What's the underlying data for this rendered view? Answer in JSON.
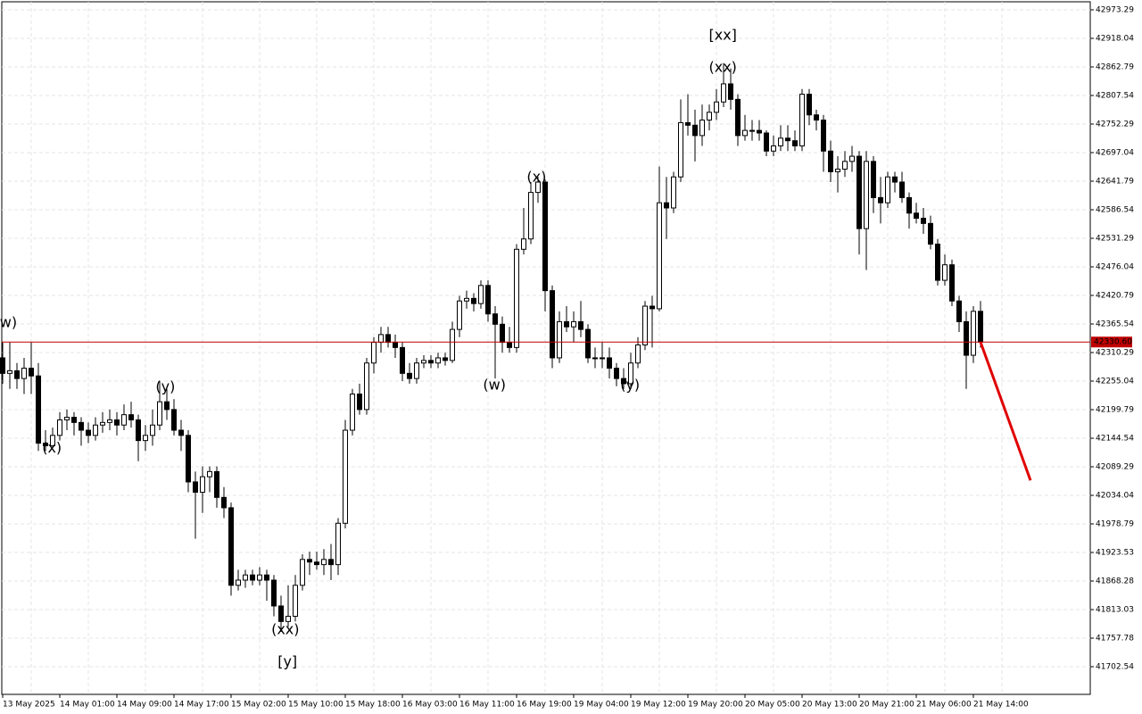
{
  "chart_data": {
    "type": "candlestick",
    "categories": [
      "13 May 2025",
      null,
      null,
      null,
      null,
      null,
      null,
      null,
      "14 May 01:00",
      null,
      null,
      null,
      null,
      null,
      null,
      null,
      "14 May 09:00",
      null,
      null,
      null,
      null,
      null,
      null,
      null,
      "14 May 17:00",
      null,
      null,
      null,
      null,
      null,
      null,
      null,
      "15 May 02:00",
      null,
      null,
      null,
      null,
      null,
      null,
      null,
      "15 May 10:00",
      null,
      null,
      null,
      null,
      null,
      null,
      null,
      "15 May 18:00",
      null,
      null,
      null,
      null,
      null,
      null,
      null,
      "16 May 03:00",
      null,
      null,
      null,
      null,
      null,
      null,
      null,
      "16 May 11:00",
      null,
      null,
      null,
      null,
      null,
      null,
      null,
      "16 May 19:00",
      null,
      null,
      null,
      null,
      null,
      null,
      null,
      "19 May 04:00",
      null,
      null,
      null,
      null,
      null,
      null,
      null,
      "19 May 12:00",
      null,
      null,
      null,
      null,
      null,
      null,
      null,
      "19 May 20:00",
      null,
      null,
      null,
      null,
      null,
      null,
      null,
      "20 May 05:00",
      null,
      null,
      null,
      null,
      null,
      null,
      null,
      "20 May 13:00",
      null,
      null,
      null,
      null,
      null,
      null,
      null,
      "20 May 21:00",
      null,
      null,
      null,
      null,
      null,
      null,
      null,
      "21 May 06:00",
      null,
      null,
      null,
      null,
      null,
      null,
      null,
      "21 May 14:00",
      null
    ],
    "series": [
      {
        "up_color": "#ffffff",
        "down_color": "#000000",
        "candles": [
          [
            42300,
            42330,
            42250,
            42270
          ],
          [
            42270,
            42330,
            42240,
            42275
          ],
          [
            42275,
            42290,
            42240,
            42260
          ],
          [
            42260,
            42300,
            42230,
            42280
          ],
          [
            42280,
            42330,
            42230,
            42265
          ],
          [
            42265,
            42290,
            42120,
            42135
          ],
          [
            42135,
            42160,
            42120,
            42130
          ],
          [
            42130,
            42165,
            42125,
            42150
          ],
          [
            42150,
            42195,
            42140,
            42180
          ],
          [
            42180,
            42200,
            42160,
            42185
          ],
          [
            42185,
            42195,
            42150,
            42175
          ],
          [
            42175,
            42185,
            42130,
            42160
          ],
          [
            42160,
            42175,
            42135,
            42150
          ],
          [
            42150,
            42185,
            42140,
            42170
          ],
          [
            42170,
            42195,
            42155,
            42175
          ],
          [
            42175,
            42200,
            42160,
            42180
          ],
          [
            42180,
            42195,
            42150,
            42170
          ],
          [
            42170,
            42210,
            42160,
            42190
          ],
          [
            42190,
            42215,
            42165,
            42180
          ],
          [
            42180,
            42190,
            42100,
            42140
          ],
          [
            42140,
            42170,
            42120,
            42150
          ],
          [
            42150,
            42200,
            42130,
            42170
          ],
          [
            42170,
            42255,
            42160,
            42215
          ],
          [
            42215,
            42240,
            42180,
            42200
          ],
          [
            42200,
            42220,
            42150,
            42160
          ],
          [
            42160,
            42180,
            42120,
            42150
          ],
          [
            42150,
            42160,
            42040,
            42060
          ],
          [
            42060,
            42080,
            41950,
            42040
          ],
          [
            42040,
            42090,
            42000,
            42070
          ],
          [
            42070,
            42090,
            42040,
            42080
          ],
          [
            42080,
            42090,
            42010,
            42030
          ],
          [
            42030,
            42050,
            41990,
            42010
          ],
          [
            42010,
            42020,
            41840,
            41860
          ],
          [
            41860,
            41890,
            41850,
            41870
          ],
          [
            41870,
            41890,
            41855,
            41880
          ],
          [
            41880,
            41890,
            41860,
            41870
          ],
          [
            41870,
            41895,
            41860,
            41880
          ],
          [
            41880,
            41890,
            41830,
            41870
          ],
          [
            41870,
            41880,
            41800,
            41820
          ],
          [
            41820,
            41840,
            41770,
            41790
          ],
          [
            41790,
            41860,
            41780,
            41800
          ],
          [
            41800,
            41880,
            41790,
            41860
          ],
          [
            41860,
            41920,
            41850,
            41910
          ],
          [
            41910,
            41925,
            41880,
            41905
          ],
          [
            41905,
            41925,
            41890,
            41900
          ],
          [
            41900,
            41930,
            41880,
            41910
          ],
          [
            41910,
            41940,
            41870,
            41900
          ],
          [
            41900,
            41990,
            41880,
            41980
          ],
          [
            41980,
            42180,
            41970,
            42160
          ],
          [
            42160,
            42240,
            42150,
            42230
          ],
          [
            42230,
            42250,
            42190,
            42200
          ],
          [
            42200,
            42300,
            42190,
            42290
          ],
          [
            42290,
            42340,
            42270,
            42330
          ],
          [
            42330,
            42360,
            42310,
            42345
          ],
          [
            42345,
            42360,
            42320,
            42330
          ],
          [
            42330,
            42345,
            42300,
            42320
          ],
          [
            42320,
            42330,
            42255,
            42270
          ],
          [
            42270,
            42290,
            42250,
            42260
          ],
          [
            42260,
            42300,
            42250,
            42290
          ],
          [
            42290,
            42305,
            42280,
            42295
          ],
          [
            42295,
            42305,
            42280,
            42290
          ],
          [
            42290,
            42310,
            42280,
            42300
          ],
          [
            42300,
            42310,
            42285,
            42295
          ],
          [
            42295,
            42370,
            42290,
            42355
          ],
          [
            42355,
            42420,
            42340,
            42410
          ],
          [
            42410,
            42430,
            42395,
            42415
          ],
          [
            42415,
            42425,
            42390,
            42405
          ],
          [
            42405,
            42450,
            42395,
            42440
          ],
          [
            42440,
            42450,
            42370,
            42385
          ],
          [
            42385,
            42400,
            42260,
            42365
          ],
          [
            42365,
            42380,
            42310,
            42330
          ],
          [
            42330,
            42360,
            42310,
            42320
          ],
          [
            42320,
            42520,
            42310,
            42510
          ],
          [
            42510,
            42590,
            42500,
            42530
          ],
          [
            42530,
            42640,
            42520,
            42620
          ],
          [
            42620,
            42650,
            42600,
            42640
          ],
          [
            42640,
            42645,
            42390,
            42430
          ],
          [
            42430,
            42440,
            42280,
            42300
          ],
          [
            42300,
            42390,
            42290,
            42370
          ],
          [
            42370,
            42400,
            42350,
            42360
          ],
          [
            42360,
            42390,
            42330,
            42370
          ],
          [
            42370,
            42410,
            42340,
            42355
          ],
          [
            42355,
            42365,
            42290,
            42300
          ],
          [
            42300,
            42320,
            42280,
            42300
          ],
          [
            42300,
            42330,
            42280,
            42300
          ],
          [
            42300,
            42320,
            42260,
            42280
          ],
          [
            42280,
            42290,
            42245,
            42260
          ],
          [
            42260,
            42280,
            42240,
            42250
          ],
          [
            42250,
            42310,
            42240,
            42290
          ],
          [
            42290,
            42340,
            42280,
            42325
          ],
          [
            42325,
            42410,
            42315,
            42400
          ],
          [
            42400,
            42420,
            42320,
            42395
          ],
          [
            42395,
            42670,
            42390,
            42600
          ],
          [
            42600,
            42650,
            42530,
            42590
          ],
          [
            42590,
            42660,
            42580,
            42650
          ],
          [
            42650,
            42800,
            42640,
            42755
          ],
          [
            42755,
            42810,
            42730,
            42750
          ],
          [
            42750,
            42780,
            42680,
            42730
          ],
          [
            42730,
            42790,
            42710,
            42760
          ],
          [
            42760,
            42790,
            42740,
            42775
          ],
          [
            42775,
            42820,
            42760,
            42795
          ],
          [
            42795,
            42870,
            42785,
            42830
          ],
          [
            42830,
            42860,
            42780,
            42800
          ],
          [
            42800,
            42810,
            42710,
            42730
          ],
          [
            42730,
            42770,
            42720,
            42740
          ],
          [
            42740,
            42760,
            42720,
            42740
          ],
          [
            42740,
            42760,
            42720,
            42735
          ],
          [
            42735,
            42740,
            42690,
            42700
          ],
          [
            42700,
            42730,
            42690,
            42710
          ],
          [
            42710,
            42750,
            42700,
            42725
          ],
          [
            42725,
            42750,
            42700,
            42720
          ],
          [
            42720,
            42740,
            42700,
            42710
          ],
          [
            42710,
            42820,
            42700,
            42810
          ],
          [
            42810,
            42820,
            42750,
            42770
          ],
          [
            42770,
            42780,
            42740,
            42760
          ],
          [
            42760,
            42770,
            42660,
            42700
          ],
          [
            42700,
            42720,
            42640,
            42660
          ],
          [
            42660,
            42690,
            42620,
            42665
          ],
          [
            42665,
            42700,
            42650,
            42680
          ],
          [
            42680,
            42710,
            42660,
            42690
          ],
          [
            42690,
            42700,
            42500,
            42550
          ],
          [
            42550,
            42700,
            42470,
            42680
          ],
          [
            42680,
            42690,
            42580,
            42610
          ],
          [
            42610,
            42650,
            42560,
            42600
          ],
          [
            42600,
            42660,
            42590,
            42650
          ],
          [
            42650,
            42660,
            42620,
            42640
          ],
          [
            42640,
            42660,
            42600,
            42610
          ],
          [
            42610,
            42620,
            42550,
            42580
          ],
          [
            42580,
            42600,
            42560,
            42570
          ],
          [
            42570,
            42590,
            42540,
            42560
          ],
          [
            42560,
            42575,
            42510,
            42520
          ],
          [
            42520,
            42530,
            42440,
            42450
          ],
          [
            42450,
            42500,
            42440,
            42480
          ],
          [
            42480,
            42490,
            42400,
            42410
          ],
          [
            42410,
            42420,
            42350,
            42370
          ],
          [
            42370,
            42390,
            42240,
            42305
          ],
          [
            42305,
            42400,
            42290,
            42390
          ],
          [
            42390,
            42410,
            42320,
            42330.6
          ]
        ]
      }
    ],
    "forecast": {
      "x": [
        137,
        144
      ],
      "values": [
        42330.6,
        42063
      ],
      "color": "#e00000"
    },
    "price_line": {
      "value": 42330.6,
      "label": "42330.60",
      "color": "#c00000"
    },
    "annotations": [
      {
        "text": "w)",
        "x": 0.8,
        "price": 42367,
        "color": "#2020c8"
      },
      {
        "text": "(x)",
        "x": 6.9,
        "price": 42125,
        "color": "#2020c8"
      },
      {
        "text": "(y)",
        "x": 22.8,
        "price": 42243,
        "color": "#2020c8"
      },
      {
        "text": "(xx)",
        "x": 39.6,
        "price": 41773,
        "color": "#2020c8"
      },
      {
        "text": "[y]",
        "x": 39.9,
        "price": 41711,
        "color": "#33cc33"
      },
      {
        "text": "(w)",
        "x": 68.9,
        "price": 42246,
        "color": "#2020c8"
      },
      {
        "text": "(x)",
        "x": 74.8,
        "price": 42649,
        "color": "#2020c8"
      },
      {
        "text": "(y)",
        "x": 87.9,
        "price": 42246,
        "color": "#2020c8"
      },
      {
        "text": "(xx)",
        "x": 100.9,
        "price": 42861,
        "color": "#2020c8"
      },
      {
        "text": "[xx]",
        "x": 100.9,
        "price": 42923,
        "color": "#33cc33"
      }
    ],
    "ylim": [
      41649.0,
      42988.8
    ],
    "yticks": [
      42973.29,
      42918.04,
      42862.79,
      42807.54,
      42752.29,
      42697.04,
      42641.79,
      42586.54,
      42531.29,
      42476.04,
      42420.79,
      42365.54,
      42310.29,
      42255.04,
      42199.79,
      42144.54,
      42089.29,
      42034.04,
      41978.79,
      41923.53,
      41868.28,
      41813.03,
      41757.78,
      41702.54
    ],
    "grid": true
  }
}
